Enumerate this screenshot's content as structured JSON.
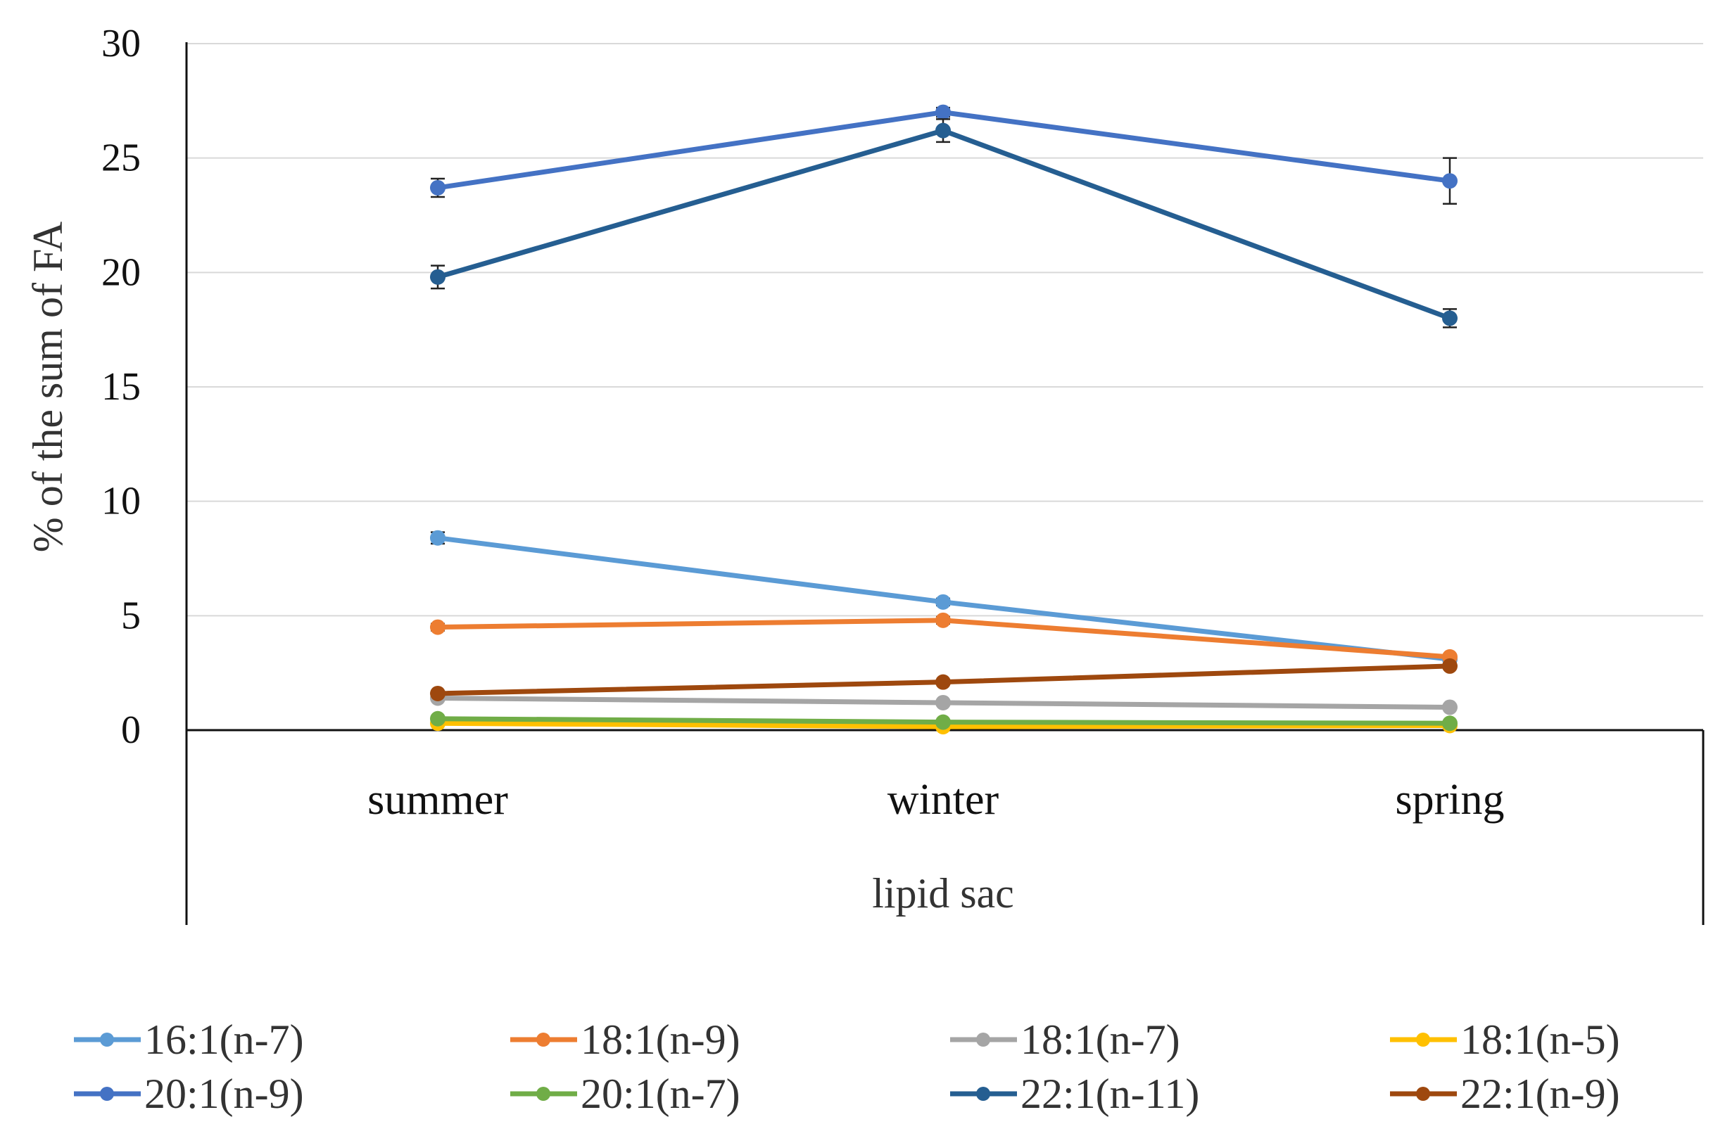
{
  "chart_data": {
    "type": "line",
    "title": "",
    "ylabel": "% of the sum of FA",
    "xlabel": "lipid sac",
    "categories": [
      "summer",
      "winter",
      "spring"
    ],
    "ylim": [
      0,
      30
    ],
    "yticks": [
      0,
      5,
      10,
      15,
      20,
      25,
      30
    ],
    "grid": true,
    "legend_position": "bottom",
    "series": [
      {
        "name": "16:1(n-7)",
        "color": "#5B9BD5",
        "values": [
          8.4,
          5.6,
          3.1
        ],
        "errors": [
          0.25,
          0.15,
          0.1
        ]
      },
      {
        "name": "18:1(n-9)",
        "color": "#ED7D31",
        "values": [
          4.5,
          4.8,
          3.2
        ],
        "errors": [
          0.15,
          0.15,
          0.1
        ]
      },
      {
        "name": "18:1(n-7)",
        "color": "#A5A5A5",
        "values": [
          1.4,
          1.2,
          1.0
        ],
        "errors": [
          0.05,
          0.05,
          0.05
        ]
      },
      {
        "name": "18:1(n-5)",
        "color": "#FFC000",
        "values": [
          0.3,
          0.15,
          0.2
        ],
        "errors": [
          0.03,
          0.03,
          0.03
        ]
      },
      {
        "name": "20:1(n-9)",
        "color": "#4472C4",
        "values": [
          23.7,
          27.0,
          24.0
        ],
        "errors": [
          0.4,
          0.2,
          1.0
        ]
      },
      {
        "name": "20:1(n-7)",
        "color": "#70AD47",
        "values": [
          0.5,
          0.35,
          0.3
        ],
        "errors": [
          0.03,
          0.03,
          0.03
        ]
      },
      {
        "name": "22:1(n-11)",
        "color": "#255E91",
        "values": [
          19.8,
          26.2,
          18.0
        ],
        "errors": [
          0.5,
          0.5,
          0.4
        ]
      },
      {
        "name": "22:1(n-9)",
        "color": "#9E480E",
        "values": [
          1.6,
          2.1,
          2.8
        ],
        "errors": [
          0.1,
          0.1,
          0.1
        ]
      }
    ]
  }
}
